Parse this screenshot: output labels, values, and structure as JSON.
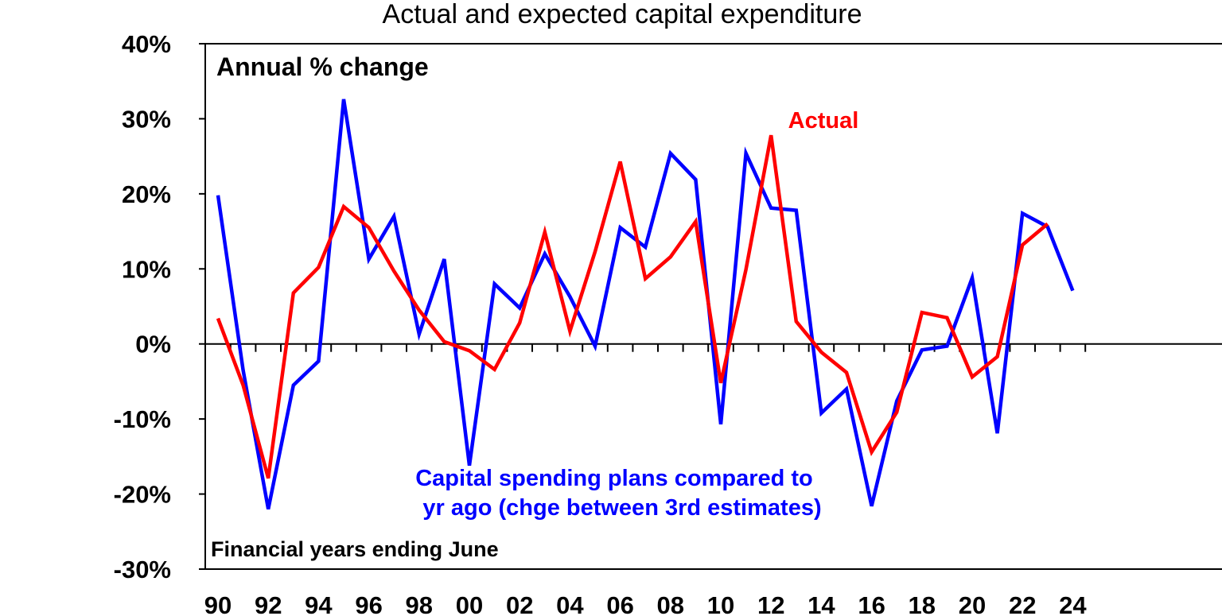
{
  "chart_data": {
    "type": "line",
    "title": "Actual and expected capital expenditure",
    "subtitle": "Annual % change",
    "note": "Financial years ending June",
    "ylim": [
      -30,
      40
    ],
    "y_ticks": [
      "-30%",
      "-20%",
      "-10%",
      "0%",
      "10%",
      "20%",
      "30%",
      "40%"
    ],
    "y_tick_values": [
      -30,
      -20,
      -10,
      0,
      10,
      20,
      30,
      40
    ],
    "x_tick_labels": [
      "90",
      "92",
      "94",
      "96",
      "98",
      "00",
      "02",
      "04",
      "06",
      "08",
      "10",
      "12",
      "14",
      "16",
      "18",
      "20",
      "22",
      "24"
    ],
    "x_tick_years": [
      1990,
      1992,
      1994,
      1996,
      1998,
      2000,
      2002,
      2004,
      2006,
      2008,
      2010,
      2012,
      2014,
      2016,
      2018,
      2020,
      2022,
      2024
    ],
    "x_range": [
      1990,
      2024
    ],
    "grid": false,
    "series": [
      {
        "name": "Capital spending plans compared to yr ago (chge between 3rd estimates)",
        "label_lines": [
          "Capital spending plans compared to",
          "yr ago (chge between 3rd estimates)"
        ],
        "color": "#0000ff",
        "x": [
          1990,
          1991,
          1992,
          1993,
          1994,
          1995,
          1996,
          1997,
          1998,
          1999,
          2000,
          2001,
          2002,
          2003,
          2004,
          2005,
          2006,
          2007,
          2008,
          2009,
          2010,
          2011,
          2012,
          2013,
          2014,
          2015,
          2016,
          2017,
          2018,
          2019,
          2020,
          2021,
          2022,
          2023,
          2024
        ],
        "values": [
          19.8,
          -3.5,
          -22.0,
          -5.5,
          -2.3,
          32.6,
          11.3,
          17.0,
          1.3,
          11.3,
          -16.2,
          8.0,
          4.8,
          12.0,
          6.3,
          -0.3,
          15.5,
          12.9,
          25.4,
          21.9,
          -10.7,
          25.4,
          18.1,
          17.8,
          -9.2,
          -6.0,
          -21.6,
          -7.6,
          -0.8,
          -0.3,
          8.8,
          -11.9,
          17.4,
          15.6,
          7.1
        ]
      },
      {
        "name": "Actual",
        "label_lines": [
          "Actual"
        ],
        "color": "#ff0000",
        "x": [
          1990,
          1991,
          1992,
          1993,
          1994,
          1995,
          1996,
          1997,
          1998,
          1999,
          2000,
          2001,
          2002,
          2003,
          2004,
          2005,
          2006,
          2007,
          2008,
          2009,
          2010,
          2011,
          2012,
          2013,
          2014,
          2015,
          2016,
          2017,
          2018,
          2019,
          2020,
          2021,
          2022,
          2023
        ],
        "values": [
          3.4,
          -5.5,
          -17.9,
          6.8,
          10.2,
          18.3,
          15.5,
          9.7,
          4.5,
          0.3,
          -0.9,
          -3.4,
          2.8,
          14.9,
          1.7,
          12.3,
          24.3,
          8.7,
          11.6,
          16.3,
          -5.2,
          9.9,
          27.8,
          3.0,
          -1.1,
          -3.8,
          -14.4,
          -9.1,
          4.2,
          3.5,
          -4.4,
          -1.7,
          13.2,
          16.0
        ]
      }
    ]
  }
}
